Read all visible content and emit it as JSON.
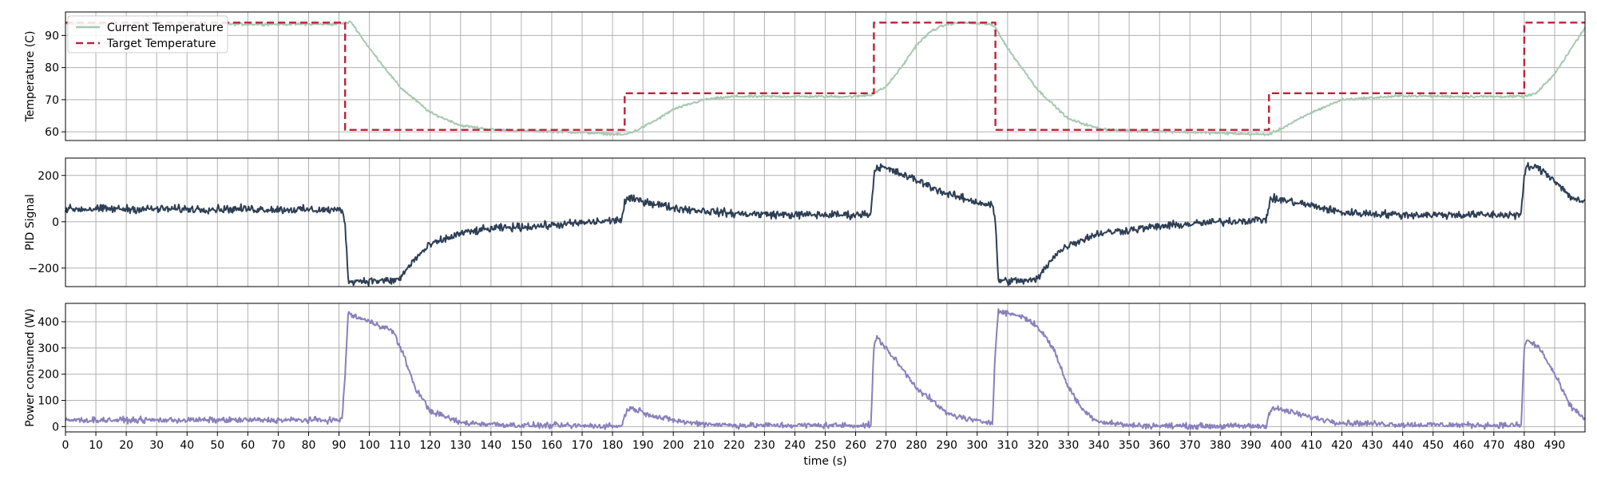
{
  "chart_data": [
    {
      "type": "line",
      "ylabel": "Temperature (C)",
      "ylim": [
        57.3,
        97.3
      ],
      "yticks": [
        60,
        70,
        80,
        90
      ],
      "xlim": [
        0,
        500
      ],
      "grid": true,
      "legend": {
        "placement": "top-left",
        "entries": [
          {
            "name": "Current Temperature",
            "color": "#a8c8b0",
            "dash": false
          },
          {
            "name": "Target Temperature",
            "color": "#b8243a",
            "dash": true
          }
        ]
      },
      "series": [
        {
          "name": "Current Temperature",
          "color": "#a8c8b0",
          "noise": 0.3,
          "x": [
            0,
            20,
            40,
            60,
            80,
            88,
            92,
            94,
            100,
            110,
            120,
            130,
            140,
            150,
            160,
            170,
            180,
            184,
            188,
            195,
            200,
            210,
            220,
            240,
            260,
            265,
            270,
            275,
            280,
            285,
            290,
            295,
            300,
            304,
            306,
            310,
            320,
            330,
            340,
            350,
            360,
            370,
            380,
            390,
            396,
            400,
            410,
            420,
            440,
            460,
            480,
            484,
            490,
            500
          ],
          "y": [
            93.5,
            93.5,
            93.5,
            93.5,
            93.5,
            93.5,
            93.8,
            94.2,
            86,
            74,
            66,
            62,
            60.7,
            60.3,
            60.1,
            59.8,
            59.3,
            59.1,
            60.5,
            64,
            67,
            70,
            71,
            71,
            71,
            71.5,
            74,
            80,
            87,
            91.5,
            93.5,
            94,
            93.7,
            93.5,
            92.5,
            86,
            73,
            64,
            61,
            60.2,
            60.1,
            59.9,
            59.6,
            59.3,
            59.2,
            61,
            66,
            70,
            71.2,
            71,
            71,
            72,
            78,
            92.5
          ]
        },
        {
          "name": "Target Temperature",
          "color": "#b8243a",
          "dash": "9,5",
          "noise": 0,
          "x": [
            0,
            92,
            92,
            184,
            184,
            266,
            266,
            306,
            306,
            396,
            396,
            480,
            480,
            500
          ],
          "y": [
            94,
            94,
            60.6,
            60.6,
            72,
            72,
            94,
            94,
            60.6,
            60.6,
            72,
            72,
            94,
            94
          ]
        }
      ]
    },
    {
      "type": "line",
      "ylabel": "PID Signal",
      "ylim": [
        -280,
        275
      ],
      "yticks": [
        -200,
        0,
        200
      ],
      "xlim": [
        0,
        500
      ],
      "grid": true,
      "series": [
        {
          "name": "",
          "color": "#2e3f55",
          "noise": 14,
          "x": [
            0,
            30,
            60,
            91,
            92,
            93,
            100,
            108,
            110,
            115,
            120,
            130,
            140,
            160,
            180,
            183,
            184,
            185,
            190,
            200,
            220,
            240,
            260,
            265,
            266,
            267,
            270,
            280,
            290,
            300,
            305,
            306,
            307,
            310,
            318,
            320,
            325,
            330,
            340,
            360,
            380,
            395,
            396,
            397,
            400,
            410,
            420,
            440,
            460,
            479,
            480,
            481,
            485,
            490,
            495,
            500
          ],
          "y": [
            55,
            55,
            55,
            50,
            0,
            -255,
            -255,
            -255,
            -245,
            -160,
            -100,
            -50,
            -30,
            -15,
            5,
            10,
            80,
            100,
            90,
            60,
            35,
            30,
            30,
            35,
            200,
            240,
            230,
            180,
            120,
            85,
            70,
            0,
            -255,
            -255,
            -255,
            -245,
            -150,
            -100,
            -50,
            -20,
            0,
            10,
            70,
            100,
            95,
            70,
            40,
            30,
            30,
            30,
            200,
            240,
            230,
            180,
            110,
            80
          ]
        }
      ]
    },
    {
      "type": "line",
      "ylabel": "Power consumed (W)",
      "xlabel": "time (s)",
      "ylim": [
        -20,
        470
      ],
      "yticks": [
        0,
        100,
        200,
        300,
        400
      ],
      "xlim": [
        0,
        500
      ],
      "grid": true,
      "xticks": [
        0,
        10,
        20,
        30,
        40,
        50,
        60,
        70,
        80,
        90,
        100,
        110,
        120,
        130,
        140,
        150,
        160,
        170,
        180,
        190,
        200,
        210,
        220,
        230,
        240,
        250,
        260,
        270,
        280,
        290,
        300,
        310,
        320,
        330,
        340,
        350,
        360,
        370,
        380,
        390,
        400,
        410,
        420,
        430,
        440,
        450,
        460,
        470,
        480,
        490
      ],
      "series": [
        {
          "name": "",
          "color": "#8a80bb",
          "noise": 9,
          "x": [
            0,
            30,
            60,
            91,
            92,
            93,
            100,
            105,
            108,
            112,
            115,
            120,
            130,
            150,
            183,
            184,
            185,
            188,
            195,
            205,
            220,
            265,
            266,
            267,
            270,
            280,
            290,
            300,
            305,
            306,
            307,
            315,
            320,
            325,
            330,
            335,
            340,
            350,
            360,
            380,
            395,
            396,
            397,
            400,
            410,
            420,
            440,
            479,
            480,
            481,
            485,
            490,
            495,
            500
          ],
          "y": [
            25,
            25,
            25,
            25,
            200,
            430,
            400,
            380,
            360,
            250,
            150,
            60,
            15,
            5,
            2,
            40,
            70,
            65,
            35,
            15,
            5,
            5,
            300,
            340,
            300,
            150,
            50,
            20,
            18,
            300,
            440,
            420,
            380,
            300,
            150,
            60,
            20,
            5,
            3,
            2,
            2,
            50,
            70,
            65,
            35,
            15,
            8,
            5,
            300,
            330,
            300,
            200,
            80,
            30
          ]
        }
      ]
    }
  ]
}
